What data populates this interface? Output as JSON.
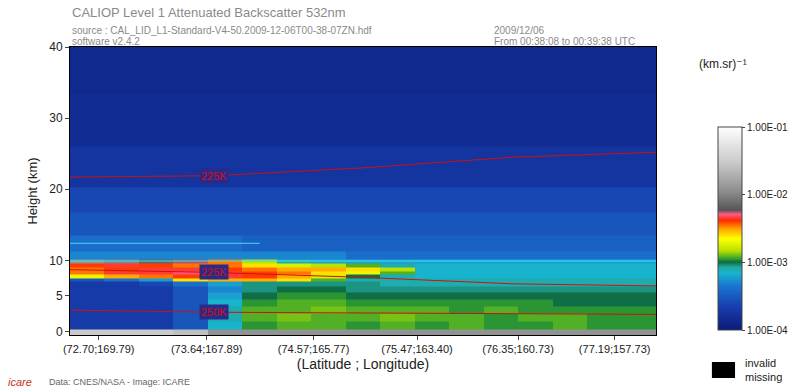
{
  "chart_data": {
    "type": "heatmap",
    "title": "CALIOP Level 1 Attenuated Backscatter 532nm",
    "subtitle": [
      "source : CAL_LID_L1-Standard-V4-50.2009-12-06T00-38-07ZN.hdf",
      "software v2.4.2"
    ],
    "header_right": [
      "2009/12/06",
      "From 00:38:08 to 00:39:38 UTC"
    ],
    "x_label": "(Latitude ; Longitude)",
    "y_label": "Height (km)",
    "x": [
      72.6,
      72.9,
      73.2,
      73.5,
      73.8,
      74.1,
      74.4,
      74.7,
      75.0,
      75.3,
      75.6,
      75.9,
      76.2,
      76.5,
      76.8,
      77.1,
      77.4
    ],
    "y": [
      -0.25,
      0.75,
      2,
      3,
      4,
      5,
      6,
      6.75,
      7.25,
      7.75,
      8.25,
      8.75,
      9.25,
      9.75,
      10.5,
      12,
      15,
      18.5,
      22,
      30,
      37
    ],
    "z": [
      [
        0.03,
        0.03,
        0.03,
        0.025,
        0.012,
        0.012,
        0.012,
        0.012,
        0.012,
        0.012,
        0.012,
        0.012,
        0.012,
        0.012,
        0.012,
        0.012,
        0.012
      ],
      [
        0.0002,
        0.0002,
        0.0002,
        0.0003,
        0.0007,
        0.0011,
        0.0012,
        0.0012,
        0.0011,
        0.0012,
        0.0011,
        0.0012,
        0.0011,
        0.0011,
        0.0012,
        0.0011,
        0.0011
      ],
      [
        0.0002,
        0.0002,
        0.0002,
        0.0003,
        0.0008,
        0.0012,
        0.0013,
        0.0012,
        0.0012,
        0.0013,
        0.0012,
        0.0012,
        0.0011,
        0.0012,
        0.0012,
        0.0011,
        0.0011
      ],
      [
        0.0002,
        0.0002,
        0.0002,
        0.0003,
        0.0008,
        0.0012,
        0.0012,
        0.0013,
        0.0012,
        0.0012,
        0.0012,
        0.0011,
        0.0012,
        0.0011,
        0.0011,
        0.0011,
        0.0011
      ],
      [
        0.0002,
        0.0002,
        0.0002,
        0.0003,
        0.0007,
        0.0011,
        0.0012,
        0.0012,
        0.0011,
        0.0011,
        0.0011,
        0.0011,
        0.0011,
        0.0011,
        0.001,
        0.001,
        0.001
      ],
      [
        0.0002,
        0.0002,
        0.0002,
        0.0003,
        0.0006,
        0.001,
        0.0011,
        0.0011,
        0.001,
        0.001,
        0.001,
        0.001,
        0.001,
        0.001,
        0.001,
        0.001,
        0.001
      ],
      [
        0.0002,
        0.0002,
        0.0002,
        0.0003,
        0.0005,
        0.0009,
        0.001,
        0.001,
        0.0009,
        0.0009,
        0.0009,
        0.0009,
        0.0009,
        0.0009,
        0.0009,
        0.0009,
        0.0009
      ],
      [
        0.0002,
        0.0002,
        0.00025,
        0.0004,
        0.0006,
        0.0009,
        0.0009,
        0.0009,
        0.0009,
        0.0008,
        0.0008,
        0.0008,
        0.0008,
        0.0008,
        0.0008,
        0.0008,
        0.0008
      ],
      [
        0.0003,
        0.0004,
        0.0006,
        0.0025,
        0.003,
        0.003,
        0.0025,
        0.0012,
        0.0008,
        0.0008,
        0.0008,
        0.0008,
        0.0008,
        0.0008,
        0.0008,
        0.0008,
        0.0008
      ],
      [
        0.002,
        0.003,
        0.0035,
        0.004,
        0.0045,
        0.004,
        0.003,
        0.0018,
        0.001,
        0.0008,
        0.0007,
        0.0007,
        0.0007,
        0.0007,
        0.0007,
        0.0007,
        0.0007
      ],
      [
        0.0035,
        0.0045,
        0.0045,
        0.005,
        0.0045,
        0.004,
        0.0035,
        0.0025,
        0.002,
        0.0012,
        0.0007,
        0.0007,
        0.0007,
        0.0007,
        0.0007,
        0.0007,
        0.0007
      ],
      [
        0.0035,
        0.004,
        0.0045,
        0.0045,
        0.004,
        0.0035,
        0.003,
        0.003,
        0.0025,
        0.0015,
        0.0007,
        0.0007,
        0.0007,
        0.0007,
        0.0007,
        0.0007,
        0.0007
      ],
      [
        0.004,
        0.0045,
        0.004,
        0.0035,
        0.0035,
        0.0025,
        0.0018,
        0.0015,
        0.0012,
        0.0008,
        0.0007,
        0.0007,
        0.0007,
        0.0007,
        0.0007,
        0.0007,
        0.0007
      ],
      [
        0.012,
        0.01,
        0.007,
        0.0055,
        0.0035,
        0.0015,
        0.0008,
        0.0006,
        0.0006,
        0.0006,
        0.0006,
        0.0006,
        0.0006,
        0.0006,
        0.0006,
        0.0006,
        0.0006
      ],
      [
        0.0005,
        0.0005,
        0.0005,
        0.0005,
        0.0005,
        0.0005,
        0.0005,
        0.0005,
        0.0004,
        0.0004,
        0.0004,
        0.0004,
        0.0004,
        0.0004,
        0.0004,
        0.0004,
        0.0004
      ],
      [
        0.0004,
        0.0004,
        0.0004,
        0.0004,
        0.0004,
        0.00035,
        0.00035,
        0.00035,
        0.00035,
        0.00035,
        0.00035,
        0.00035,
        0.00035,
        0.00035,
        0.00035,
        0.00035,
        0.00035
      ],
      [
        0.0003,
        0.0003,
        0.0003,
        0.0003,
        0.0003,
        0.0003,
        0.0003,
        0.0003,
        0.0003,
        0.0003,
        0.0003,
        0.0003,
        0.0003,
        0.0003,
        0.0003,
        0.0003,
        0.0003
      ],
      [
        0.00025,
        0.00025,
        0.00025,
        0.00025,
        0.00025,
        0.00025,
        0.00025,
        0.00025,
        0.00025,
        0.00025,
        0.00025,
        0.00025,
        0.00025,
        0.00025,
        0.00025,
        0.00025,
        0.00025
      ],
      [
        0.00018,
        0.00018,
        0.00018,
        0.00018,
        0.00018,
        0.00018,
        0.00018,
        0.00018,
        0.00018,
        0.00018,
        0.00018,
        0.00018,
        0.00018,
        0.00018,
        0.00018,
        0.00018,
        0.00018
      ],
      [
        0.00015,
        0.00015,
        0.00015,
        0.00015,
        0.00015,
        0.00015,
        0.00015,
        0.00015,
        0.00015,
        0.00015,
        0.00015,
        0.00015,
        0.00015,
        0.00015,
        0.00015,
        0.00015,
        0.00015
      ],
      [
        0.00014,
        0.00014,
        0.00014,
        0.00014,
        0.00014,
        0.00014,
        0.00014,
        0.00014,
        0.00014,
        0.00014,
        0.00014,
        0.00014,
        0.00014,
        0.00014,
        0.00014,
        0.00014,
        0.00014
      ]
    ],
    "xlim": [
      72.45,
      77.55
    ],
    "xticks": [
      {
        "value": 72.7,
        "label": "(72.70;169.79)"
      },
      {
        "value": 73.64,
        "label": "(73.64;167.89)"
      },
      {
        "value": 74.57,
        "label": "(74.57;165.77)"
      },
      {
        "value": 75.47,
        "label": "(75.47;163.40)"
      },
      {
        "value": 76.35,
        "label": "(76.35;160.73)"
      },
      {
        "value": 77.19,
        "label": "(77.19;157.73)"
      }
    ],
    "ylim": [
      -0.5,
      40
    ],
    "yticks": [
      0,
      5,
      10,
      20,
      30,
      40
    ],
    "colorbar": {
      "title": "(km.sr)⁻¹",
      "log": true,
      "range": [
        0.0001,
        0.1
      ],
      "ticks": [
        {
          "value": 0.0001,
          "label": "1.00E-04"
        },
        {
          "value": 0.001,
          "label": "1.00E-03"
        },
        {
          "value": 0.01,
          "label": "1.00E-02"
        },
        {
          "value": 0.1,
          "label": "1.00E-01"
        }
      ]
    },
    "lines": [
      {
        "name": "225K",
        "color": "#d01010",
        "x": [
          72.45,
          73.7,
          75.0,
          76.3,
          77.55
        ],
        "y": [
          21.7,
          21.9,
          23.0,
          24.5,
          25.2
        ]
      },
      {
        "name": "225K",
        "color": "#d01010",
        "x": [
          72.45,
          73.7,
          75.0,
          76.3,
          77.55
        ],
        "y": [
          8.7,
          8.3,
          7.6,
          6.7,
          6.4
        ]
      },
      {
        "name": "250K",
        "color": "#d01010",
        "x": [
          72.45,
          73.7,
          75.0,
          76.3,
          77.55
        ],
        "y": [
          3.0,
          2.7,
          2.6,
          2.5,
          2.4
        ]
      },
      {
        "color": "#40e0f0",
        "x": [
          72.45,
          77.55
        ],
        "y": [
          9.9,
          9.9
        ]
      },
      {
        "color": "#40e0f0",
        "x": [
          72.45,
          74.1
        ],
        "y": [
          12.4,
          12.4
        ]
      }
    ],
    "legend_box": [
      "invalid",
      "missing"
    ],
    "footer": "Data: CNES/NASA - Image: ICARE",
    "logo": "icare"
  }
}
